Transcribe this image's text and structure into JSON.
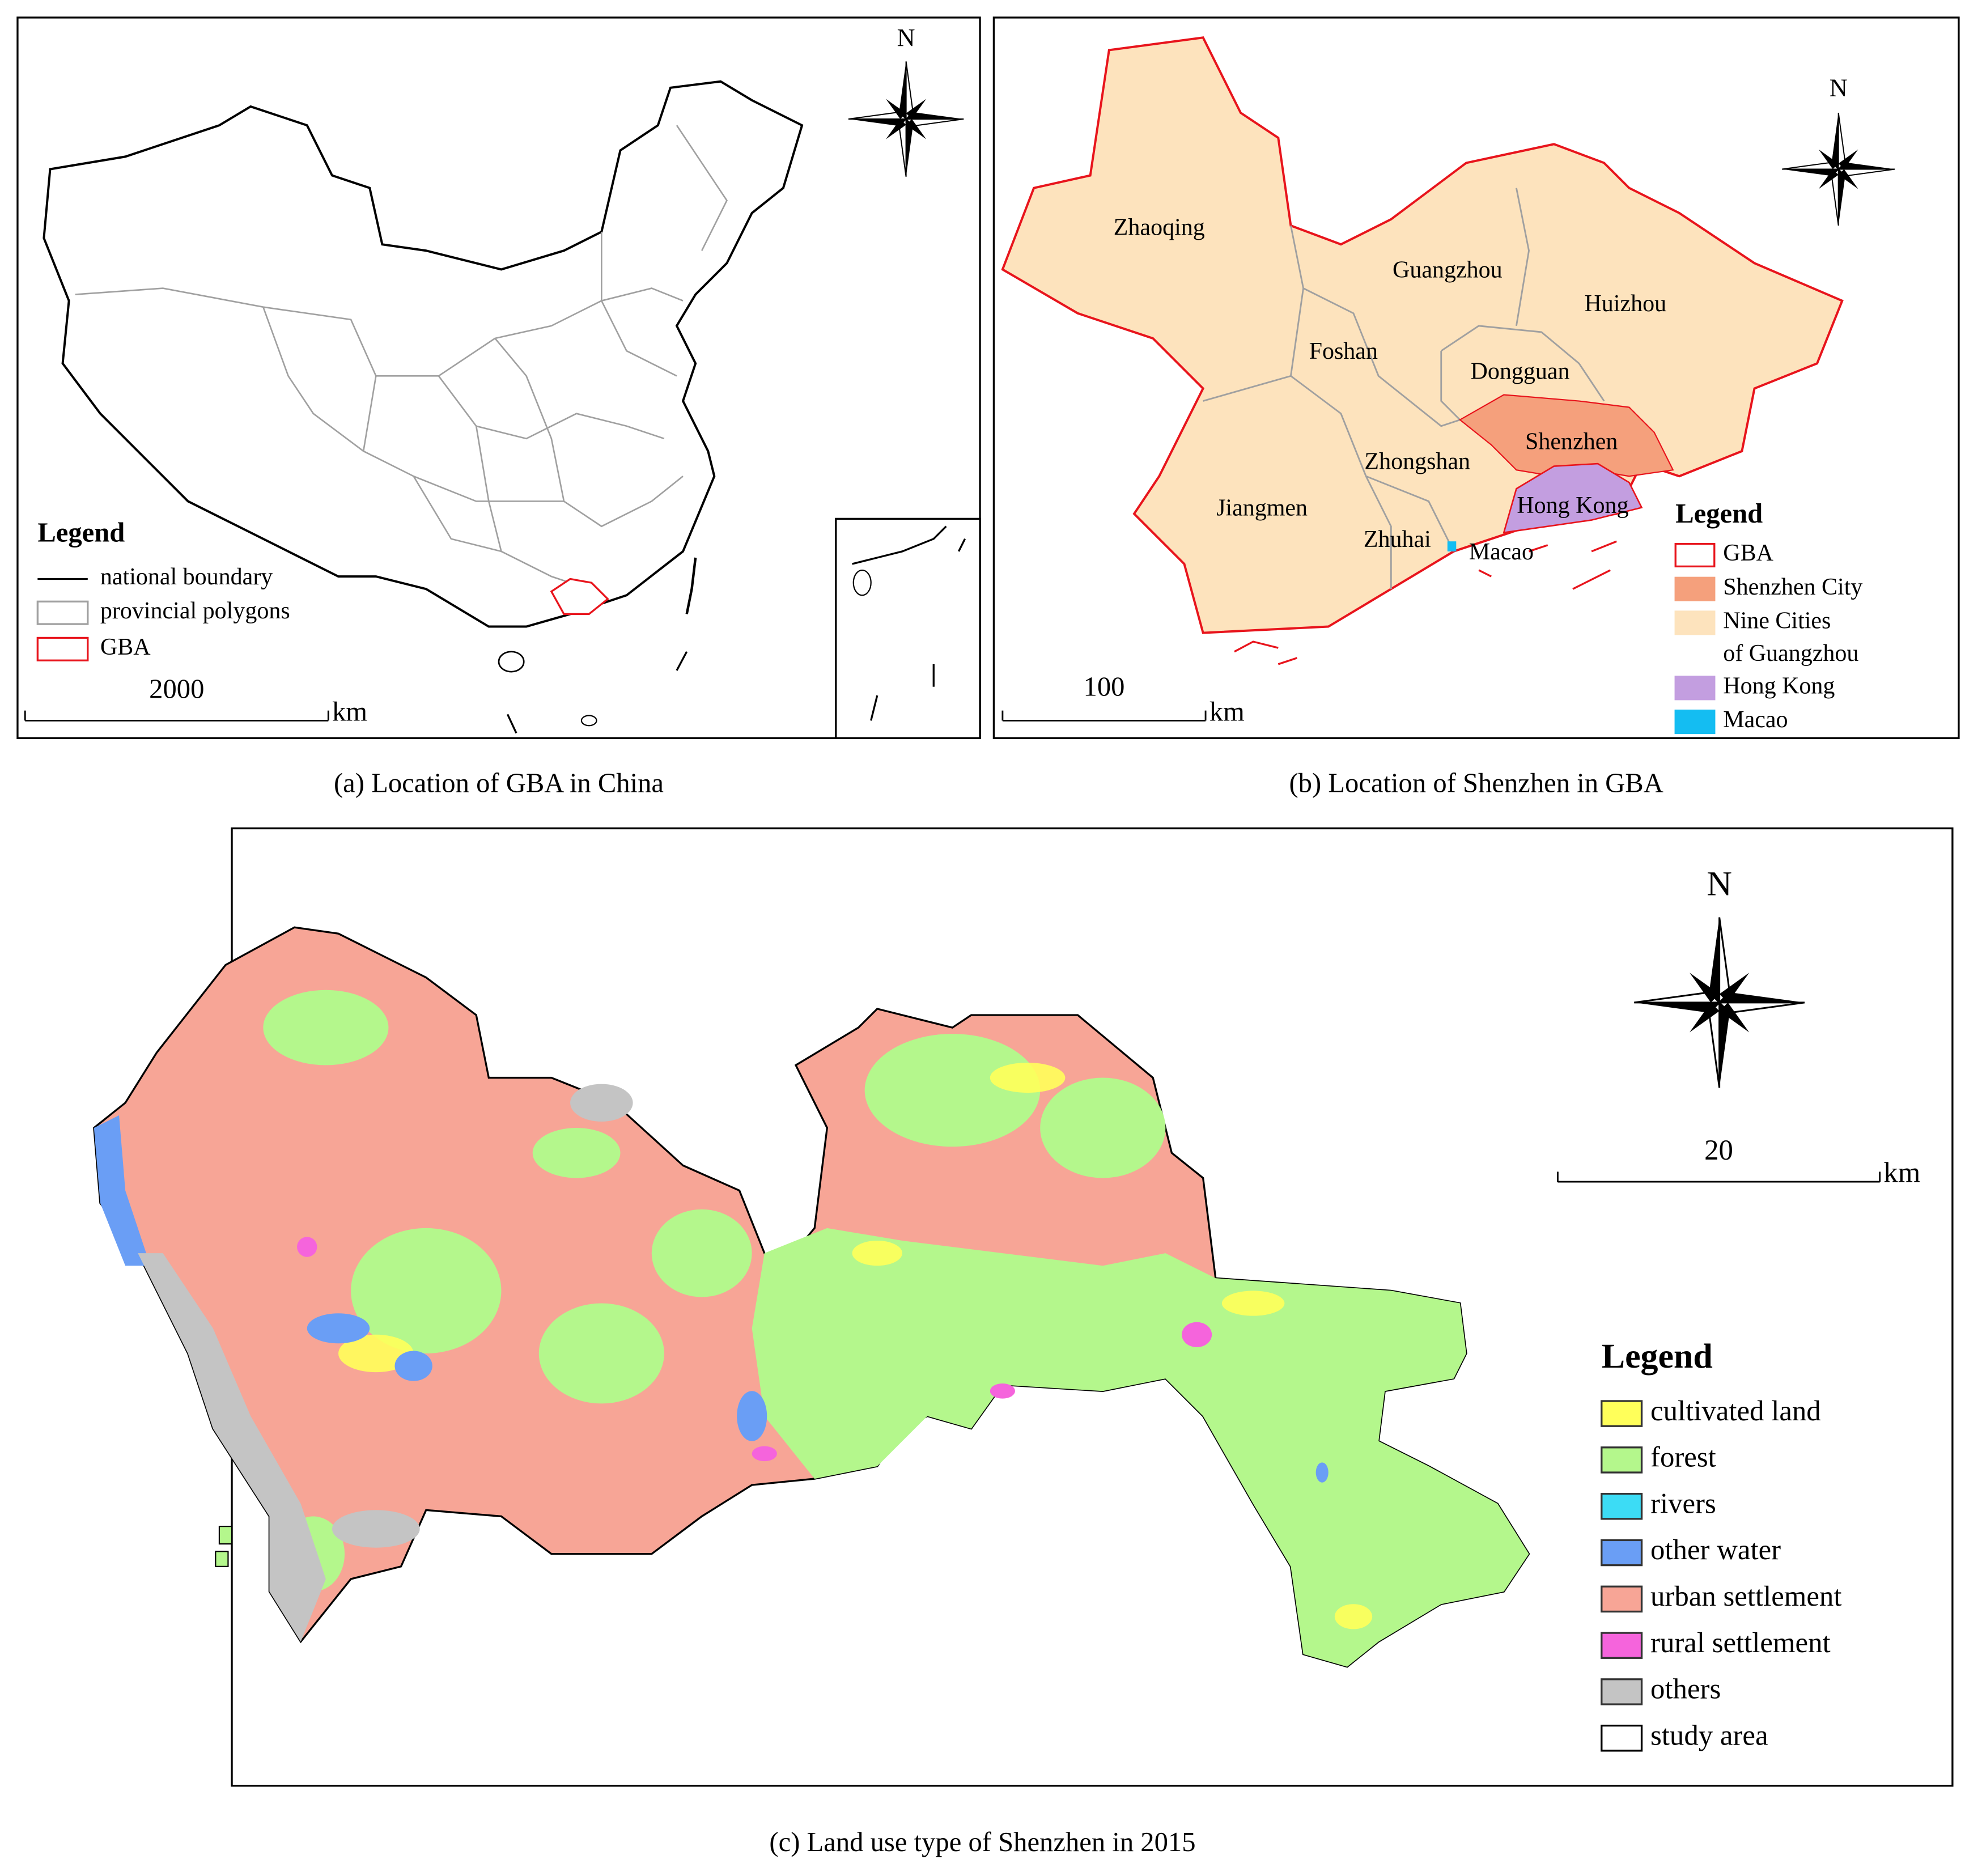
{
  "panels": [
    {
      "caption": "(a) Location of GBA in China",
      "north": "N",
      "legend": {
        "title": "Legend",
        "items": [
          {
            "label": "national boundary",
            "kind": "line",
            "stroke": "#000000"
          },
          {
            "label": "provincial polygons",
            "kind": "box",
            "stroke": "#a0a0a0",
            "fill": "#ffffff"
          },
          {
            "label": "GBA",
            "kind": "box",
            "stroke": "#e8141c",
            "fill": "#ffffff"
          }
        ]
      },
      "scale": {
        "value": 2000,
        "unit": "km"
      }
    },
    {
      "caption": "(b) Location of Shenzhen in GBA",
      "north": "N",
      "labels": [
        "Zhaoqing",
        "Guangzhou",
        "Huizhou",
        "Foshan",
        "Dongguan",
        "Shenzhen",
        "Zhongshan",
        "Jiangmen",
        "Hong Kong",
        "Zhuhai",
        "Macao"
      ],
      "legend": {
        "title": "Legend",
        "items": [
          {
            "label": "GBA",
            "kind": "box",
            "stroke": "#e8141c",
            "fill": "#ffffff"
          },
          {
            "label": "Shenzhen City",
            "kind": "box",
            "stroke": "#f5a07c",
            "fill": "#f5a07c"
          },
          {
            "label": "Nine Cities",
            "label2": "of Guangzhou",
            "kind": "box",
            "stroke": "#fde3bd",
            "fill": "#fde3bd"
          },
          {
            "label": "Hong Kong",
            "kind": "box",
            "stroke": "#c39ee0",
            "fill": "#c39ee0"
          },
          {
            "label": "Macao",
            "kind": "box",
            "stroke": "#14bdf2",
            "fill": "#14bdf2"
          }
        ]
      },
      "scale": {
        "value": 100,
        "unit": "km"
      }
    },
    {
      "caption": "(c) Land use type of Shenzhen in 2015",
      "north": "N",
      "legend": {
        "title": "Legend",
        "items": [
          {
            "label": "cultivated land",
            "kind": "box",
            "stroke": "#333333",
            "fill": "#ffff5a"
          },
          {
            "label": "forest",
            "kind": "box",
            "stroke": "#333333",
            "fill": "#b4f78c"
          },
          {
            "label": "rivers",
            "kind": "box",
            "stroke": "#333333",
            "fill": "#3cdcf5"
          },
          {
            "label": "other water",
            "kind": "box",
            "stroke": "#333333",
            "fill": "#6a9ef5"
          },
          {
            "label": "urban settlement",
            "kind": "box",
            "stroke": "#333333",
            "fill": "#f7a596"
          },
          {
            "label": "rural settlement",
            "kind": "box",
            "stroke": "#333333",
            "fill": "#f564dc"
          },
          {
            "label": "others",
            "kind": "box",
            "stroke": "#333333",
            "fill": "#c4c4c4"
          },
          {
            "label": "study area",
            "kind": "box",
            "stroke": "#000000",
            "fill": "#ffffff"
          }
        ]
      },
      "scale": {
        "value": 20,
        "unit": "km"
      }
    }
  ]
}
